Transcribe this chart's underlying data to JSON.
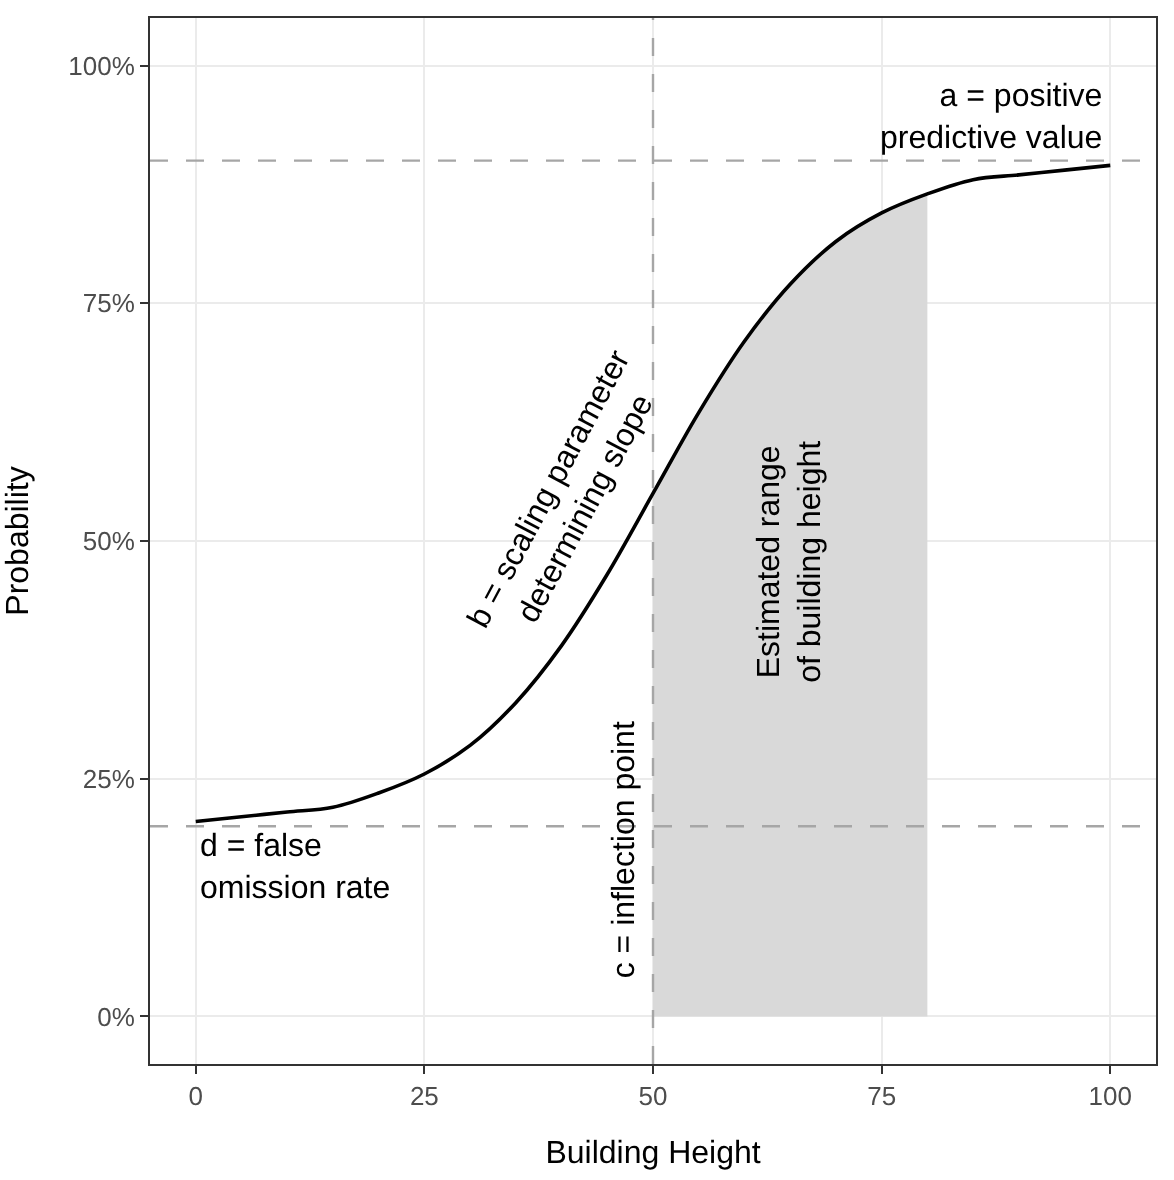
{
  "chart_data": {
    "type": "line",
    "xlabel": "Building Height",
    "ylabel": "Probability",
    "xlim": [
      -5,
      105
    ],
    "ylim": [
      -5,
      105
    ],
    "xticks": [
      0,
      25,
      50,
      75,
      100
    ],
    "yticks": [
      {
        "value": 0,
        "label": "0%"
      },
      {
        "value": 25,
        "label": "25%"
      },
      {
        "value": 50,
        "label": "50%"
      },
      {
        "value": 75,
        "label": "75%"
      },
      {
        "value": 100,
        "label": "100%"
      }
    ],
    "grid": true,
    "series": [
      {
        "type": "area",
        "color": "#d9d9d9",
        "x": [
          50,
          55,
          60,
          65,
          70,
          75,
          80
        ],
        "values": [
          55,
          63.5,
          71,
          77,
          81.5,
          84.5,
          86.5
        ]
      },
      {
        "color": "#000000",
        "line_style": "solid",
        "x": [
          0,
          5,
          10,
          15,
          20,
          25,
          30,
          35,
          40,
          45,
          50,
          55,
          60,
          65,
          70,
          75,
          80,
          85,
          90,
          95,
          100
        ],
        "values": [
          20.5,
          21,
          21.5,
          22,
          23.5,
          25.5,
          28.5,
          33,
          39,
          46.5,
          55,
          63.5,
          71,
          77,
          81.5,
          84.5,
          86.5,
          88,
          88.5,
          89,
          89.5
        ]
      }
    ],
    "ref_lines": [
      {
        "axis": "y",
        "value": 90,
        "color": "#a6a6a6",
        "line_style": "dashed"
      },
      {
        "axis": "y",
        "value": 20,
        "color": "#a6a6a6",
        "line_style": "dashed"
      },
      {
        "axis": "x",
        "value": 50,
        "color": "#a6a6a6",
        "line_style": "dashed"
      }
    ],
    "annotations": [
      {
        "text": "a = positive\npredictive value",
        "x": 100,
        "y": 90
      },
      "b = scaling parameter\ndetermining slope",
      {
        "text": "c = inflection point",
        "x": 50,
        "y": 20
      },
      {
        "text": "d = false\nomission rate",
        "x": 0,
        "y": 20
      },
      "Estimated range\nof building height"
    ]
  }
}
